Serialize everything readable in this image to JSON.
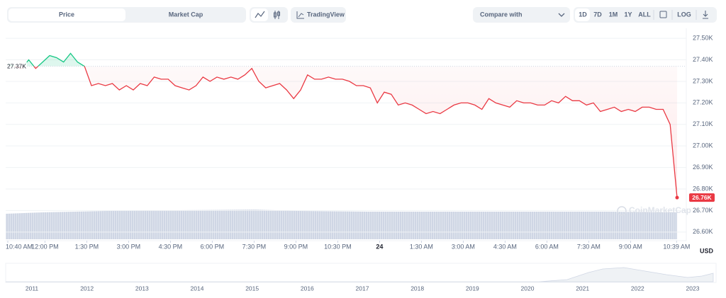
{
  "toolbar": {
    "tabs": [
      "Price",
      "Market Cap"
    ],
    "tradingview": "TradingView",
    "compare": "Compare with",
    "ranges": [
      "1D",
      "7D",
      "1M",
      "1Y",
      "ALL"
    ],
    "log": "LOG"
  },
  "watermark": "CoinMarketCap",
  "chart_data": {
    "type": "line",
    "x": [
      0,
      0.25,
      0.5,
      0.75,
      1,
      1.25,
      1.5,
      1.75,
      2,
      2.25,
      2.5,
      2.75,
      3,
      3.25,
      3.5,
      3.75,
      4,
      4.25,
      4.5,
      4.75,
      5,
      5.25,
      5.5,
      5.75,
      6,
      6.25,
      6.5,
      6.75,
      7,
      7.25,
      7.5,
      7.75,
      8,
      8.25,
      8.5,
      8.75,
      9,
      9.25,
      9.5,
      9.75,
      10,
      10.25,
      10.5,
      10.75,
      11,
      11.25,
      11.5,
      11.75,
      12,
      12.25,
      12.5,
      12.75,
      13,
      13.25,
      13.5,
      13.75,
      14,
      14.25,
      14.5,
      14.75,
      15,
      15.25,
      15.5,
      15.75,
      16,
      16.25,
      16.5,
      16.75,
      17,
      17.25,
      17.5,
      17.75,
      18,
      18.25,
      18.5,
      18.75,
      19,
      19.25,
      19.5,
      19.75,
      20,
      20.25,
      20.5,
      20.75,
      21,
      21.25,
      21.5,
      21.75,
      22,
      22.25,
      22.5,
      22.75,
      23,
      23.25,
      23.5,
      23.75,
      24
    ],
    "values": [
      27380,
      27370,
      27360,
      27400,
      27360,
      27390,
      27420,
      27410,
      27390,
      27430,
      27390,
      27370,
      27280,
      27290,
      27280,
      27290,
      27260,
      27280,
      27260,
      27290,
      27280,
      27320,
      27310,
      27310,
      27280,
      27270,
      27260,
      27280,
      27320,
      27300,
      27320,
      27310,
      27320,
      27310,
      27330,
      27360,
      27300,
      27270,
      27280,
      27290,
      27260,
      27220,
      27260,
      27330,
      27310,
      27310,
      27320,
      27310,
      27310,
      27300,
      27280,
      27280,
      27270,
      27200,
      27250,
      27240,
      27190,
      27200,
      27190,
      27170,
      27150,
      27160,
      27150,
      27170,
      27190,
      27200,
      27200,
      27190,
      27170,
      27220,
      27200,
      27190,
      27180,
      27210,
      27200,
      27200,
      27190,
      27190,
      27210,
      27200,
      27230,
      27210,
      27210,
      27190,
      27200,
      27160,
      27170,
      27180,
      27160,
      27170,
      27160,
      27180,
      27180,
      27170,
      27170,
      27100,
      26760
    ],
    "colors": {
      "up": "#16c784",
      "down": "#ea3943"
    },
    "reference": {
      "value": 27370,
      "label": "27.37K"
    },
    "last": {
      "value": 26760,
      "label": "26.76K"
    },
    "xlim": [
      0,
      24
    ],
    "xticks": [
      {
        "value": 0,
        "label": "10:40 AM"
      },
      {
        "value": 1.333,
        "label": "12:00 PM"
      },
      {
        "value": 2.833,
        "label": "1:30 PM"
      },
      {
        "value": 4.333,
        "label": "3:00 PM"
      },
      {
        "value": 5.833,
        "label": "4:30 PM"
      },
      {
        "value": 7.333,
        "label": "6:00 PM"
      },
      {
        "value": 8.833,
        "label": "7:30 PM"
      },
      {
        "value": 10.333,
        "label": "9:00 PM"
      },
      {
        "value": 11.833,
        "label": "10:30 PM"
      },
      {
        "value": 13.333,
        "label": "24"
      },
      {
        "value": 14.833,
        "label": "1:30 AM"
      },
      {
        "value": 16.333,
        "label": "3:00 AM"
      },
      {
        "value": 17.833,
        "label": "4:30 AM"
      },
      {
        "value": 19.333,
        "label": "6:00 AM"
      },
      {
        "value": 20.833,
        "label": "7:30 AM"
      },
      {
        "value": 22.333,
        "label": "9:00 AM"
      },
      {
        "value": 23.983,
        "label": "10:39 AM"
      }
    ],
    "ylim": [
      26560,
      27530
    ],
    "yticks": [
      {
        "value": 26600,
        "label": "26.60K"
      },
      {
        "value": 26700,
        "label": "26.70K"
      },
      {
        "value": 26800,
        "label": "26.80K"
      },
      {
        "value": 26900,
        "label": "26.90K"
      },
      {
        "value": 27000,
        "label": "27.00K"
      },
      {
        "value": 27100,
        "label": "27.10K"
      },
      {
        "value": 27200,
        "label": "27.20K"
      },
      {
        "value": 27300,
        "label": "27.30K"
      },
      {
        "value": 27400,
        "label": "27.40K"
      },
      {
        "value": 27500,
        "label": "27.50K"
      }
    ],
    "y_unit": "USD",
    "grid": true
  },
  "navigator": {
    "labels": [
      "2011",
      "2012",
      "2013",
      "2014",
      "2015",
      "2016",
      "2017",
      "2018",
      "2019",
      "2020",
      "2021",
      "2022",
      "2023"
    ]
  }
}
